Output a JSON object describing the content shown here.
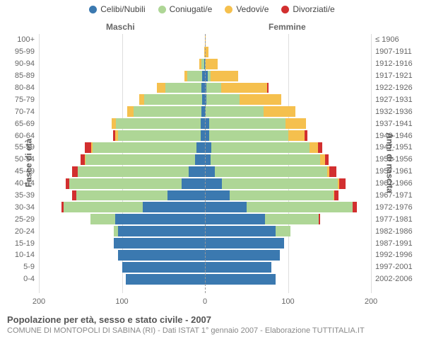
{
  "type": "population-pyramid",
  "legend": [
    {
      "label": "Celibi/Nubili",
      "color": "#3b79b0"
    },
    {
      "label": "Coniugati/e",
      "color": "#aed696"
    },
    {
      "label": "Vedovi/e",
      "color": "#f5c04e"
    },
    {
      "label": "Divorziati/e",
      "color": "#d22f2f"
    }
  ],
  "headers": {
    "male": "Maschi",
    "female": "Femmine"
  },
  "axis_titles": {
    "left": "Fasce di età",
    "right": "Anni di nascita"
  },
  "xticks": [
    -200,
    -100,
    0,
    100,
    200
  ],
  "xtick_labels": [
    "200",
    "100",
    "0",
    "100",
    "200"
  ],
  "xlim": 200,
  "gridlines": [
    -200,
    -100,
    0,
    100,
    200
  ],
  "colors": {
    "single": "#3b79b0",
    "married": "#aed696",
    "widowed": "#f5c04e",
    "divorced": "#d22f2f",
    "background": "#ffffff",
    "grid": "#dddddd",
    "centerline": "#999999",
    "text": "#666666",
    "title_text": "#555555",
    "subtitle_text": "#888888"
  },
  "bar_gap": 2,
  "row_height": 16.9,
  "title": "Popolazione per età, sesso e stato civile - 2007",
  "subtitle": "COMUNE DI MONTOPOLI DI SABINA (RI) - Dati ISTAT 1° gennaio 2007 - Elaborazione TUTTITALIA.IT",
  "rows": [
    {
      "age": "100+",
      "years": "≤ 1906",
      "m": [
        0,
        0,
        0,
        0
      ],
      "f": [
        0,
        0,
        1,
        0
      ]
    },
    {
      "age": "95-99",
      "years": "1907-1911",
      "m": [
        0,
        0,
        1,
        0
      ],
      "f": [
        0,
        0,
        4,
        0
      ]
    },
    {
      "age": "90-94",
      "years": "1912-1916",
      "m": [
        1,
        3,
        3,
        0
      ],
      "f": [
        0,
        1,
        14,
        0
      ]
    },
    {
      "age": "85-89",
      "years": "1917-1921",
      "m": [
        3,
        18,
        4,
        0
      ],
      "f": [
        3,
        4,
        33,
        0
      ]
    },
    {
      "age": "80-84",
      "years": "1922-1926",
      "m": [
        4,
        44,
        10,
        0
      ],
      "f": [
        2,
        18,
        55,
        2
      ]
    },
    {
      "age": "75-79",
      "years": "1927-1931",
      "m": [
        3,
        70,
        6,
        0
      ],
      "f": [
        2,
        40,
        50,
        0
      ]
    },
    {
      "age": "70-74",
      "years": "1932-1936",
      "m": [
        4,
        82,
        8,
        0
      ],
      "f": [
        1,
        70,
        38,
        0
      ]
    },
    {
      "age": "65-69",
      "years": "1937-1941",
      "m": [
        5,
        102,
        5,
        0
      ],
      "f": [
        5,
        92,
        25,
        0
      ]
    },
    {
      "age": "60-64",
      "years": "1942-1946",
      "m": [
        5,
        100,
        3,
        3
      ],
      "f": [
        5,
        95,
        20,
        3
      ]
    },
    {
      "age": "55-59",
      "years": "1947-1951",
      "m": [
        10,
        125,
        2,
        8
      ],
      "f": [
        8,
        118,
        10,
        5
      ]
    },
    {
      "age": "50-54",
      "years": "1952-1956",
      "m": [
        12,
        132,
        1,
        5
      ],
      "f": [
        7,
        132,
        6,
        4
      ]
    },
    {
      "age": "45-49",
      "years": "1957-1961",
      "m": [
        20,
        133,
        0,
        7
      ],
      "f": [
        12,
        135,
        3,
        8
      ]
    },
    {
      "age": "40-44",
      "years": "1962-1966",
      "m": [
        28,
        135,
        0,
        5
      ],
      "f": [
        20,
        140,
        2,
        7
      ]
    },
    {
      "age": "35-39",
      "years": "1967-1971",
      "m": [
        45,
        110,
        0,
        5
      ],
      "f": [
        30,
        125,
        1,
        5
      ]
    },
    {
      "age": "30-34",
      "years": "1972-1976",
      "m": [
        75,
        95,
        0,
        3
      ],
      "f": [
        50,
        128,
        0,
        5
      ]
    },
    {
      "age": "25-29",
      "years": "1977-1981",
      "m": [
        108,
        30,
        0,
        0
      ],
      "f": [
        72,
        65,
        0,
        2
      ]
    },
    {
      "age": "20-24",
      "years": "1982-1986",
      "m": [
        105,
        5,
        0,
        0
      ],
      "f": [
        85,
        18,
        0,
        0
      ]
    },
    {
      "age": "15-19",
      "years": "1987-1991",
      "m": [
        110,
        0,
        0,
        0
      ],
      "f": [
        95,
        0,
        0,
        0
      ]
    },
    {
      "age": "10-14",
      "years": "1992-1996",
      "m": [
        105,
        0,
        0,
        0
      ],
      "f": [
        90,
        0,
        0,
        0
      ]
    },
    {
      "age": "5-9",
      "years": "1997-2001",
      "m": [
        100,
        0,
        0,
        0
      ],
      "f": [
        80,
        0,
        0,
        0
      ]
    },
    {
      "age": "0-4",
      "years": "2002-2006",
      "m": [
        95,
        0,
        0,
        0
      ],
      "f": [
        85,
        0,
        0,
        0
      ]
    }
  ]
}
